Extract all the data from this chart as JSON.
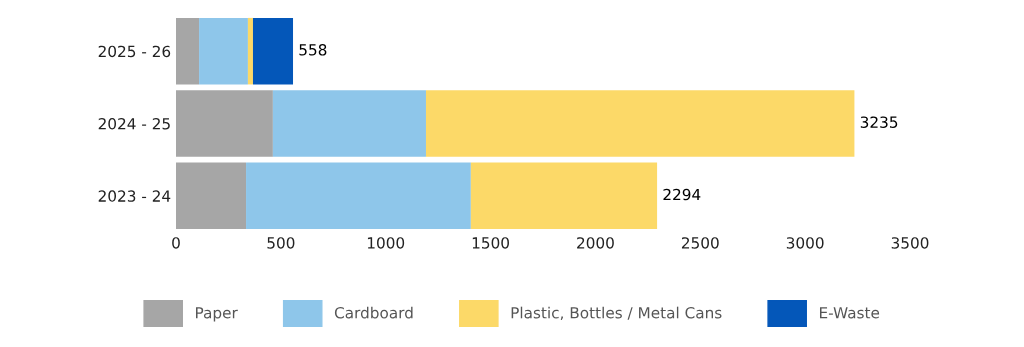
{
  "chart_data": {
    "type": "bar",
    "orientation": "horizontal",
    "stacked": true,
    "categories": [
      "2025 - 26",
      "2024 - 25",
      "2023 - 24"
    ],
    "series": [
      {
        "name": "Paper",
        "color": "#a6a6a6",
        "values": [
          110,
          462,
          334
        ]
      },
      {
        "name": "Cardboard",
        "color": "#8ec6ea",
        "values": [
          233,
          730,
          1072
        ]
      },
      {
        "name": "Plastic, Bottles / Metal Cans",
        "color": "#fcd968",
        "values": [
          24,
          2043,
          888
        ]
      },
      {
        "name": "E-Waste",
        "color": "#0457b9",
        "values": [
          191,
          null,
          null
        ]
      }
    ],
    "totals": [
      "558",
      "3235",
      "2294"
    ],
    "xlim": [
      0,
      3500
    ],
    "xticks": [
      0,
      500,
      1000,
      1500,
      2000,
      2500,
      3000,
      3500
    ],
    "grid": false,
    "legend": "bottom"
  }
}
